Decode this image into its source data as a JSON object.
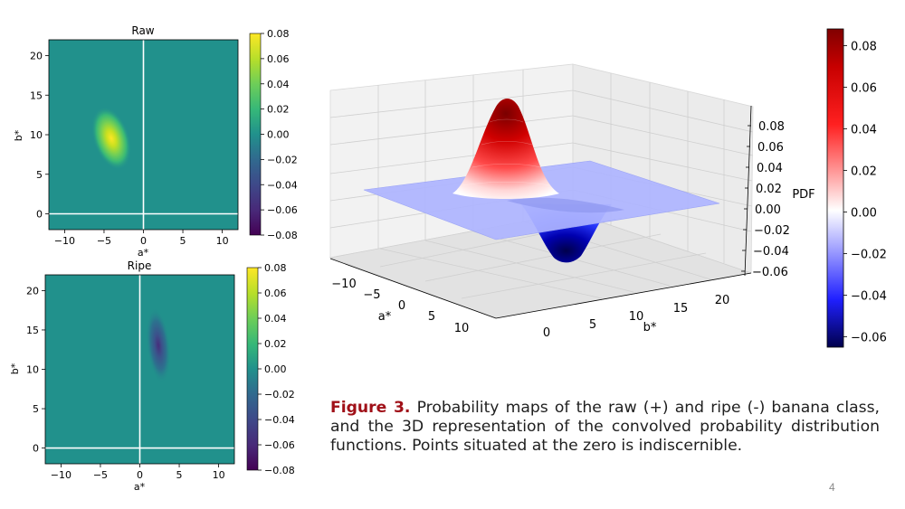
{
  "caption": {
    "figure_label": "Figure 3.",
    "text": "Probability maps of the raw (+) and ripe (-) banana class, and the 3D representation of the convolved probability distribution functions. Points situated at the zero is indiscernible."
  },
  "page_number": "4",
  "colors": {
    "field": "#21918c",
    "caption_accent": "#a01018"
  },
  "chart_data": [
    {
      "type": "heatmap",
      "title": "Raw",
      "xlabel": "a*",
      "ylabel": "b*",
      "xlim": [
        -12,
        12
      ],
      "ylim": [
        -2,
        22
      ],
      "xticks": [
        -10,
        -5,
        0,
        5,
        10
      ],
      "yticks": [
        0,
        5,
        10,
        15,
        20
      ],
      "peak": {
        "a": -4,
        "b": 9.5,
        "value": 0.08,
        "sign": "positive"
      },
      "colorbar": {
        "range": [
          -0.08,
          0.08
        ],
        "ticks": [
          "0.08",
          "0.06",
          "0.04",
          "0.02",
          "0.00",
          "−0.02",
          "−0.04",
          "−0.06",
          "−0.08"
        ],
        "colormap": "viridis"
      }
    },
    {
      "type": "heatmap",
      "title": "Ripe",
      "xlabel": "a*",
      "ylabel": "b*",
      "xlim": [
        -12,
        12
      ],
      "ylim": [
        -2,
        22
      ],
      "xticks": [
        -10,
        -5,
        0,
        5,
        10
      ],
      "yticks": [
        0,
        5,
        10,
        15,
        20
      ],
      "peak": {
        "a": 2.5,
        "b": 12,
        "value": -0.065,
        "sign": "negative"
      },
      "colorbar": {
        "range": [
          -0.08,
          0.08
        ],
        "ticks": [
          "0.08",
          "0.06",
          "0.04",
          "0.02",
          "0.00",
          "−0.02",
          "−0.04",
          "−0.06",
          "−0.08"
        ],
        "colormap": "viridis"
      }
    },
    {
      "type": "surface3d",
      "xlabel": "a*",
      "ylabel": "b*",
      "zlabel": "PDF",
      "xticks": [
        "−10",
        "−5",
        "0",
        "5",
        "10"
      ],
      "yticks": [
        "0",
        "5",
        "10",
        "15",
        "20"
      ],
      "zticks": [
        "0.08",
        "0.06",
        "0.04",
        "0.02",
        "0.00",
        "−0.02",
        "−0.04",
        "−0.06"
      ],
      "peaks": [
        {
          "a": -4,
          "b": 9.5,
          "pdf": 0.085
        },
        {
          "a": 2.5,
          "b": 12,
          "pdf": -0.065
        }
      ],
      "colorbar": {
        "range": [
          -0.065,
          0.088
        ],
        "ticks": [
          "0.08",
          "0.06",
          "0.04",
          "0.02",
          "0.00",
          "−0.02",
          "−0.04",
          "−0.06"
        ],
        "colormap": "seismic"
      }
    }
  ]
}
